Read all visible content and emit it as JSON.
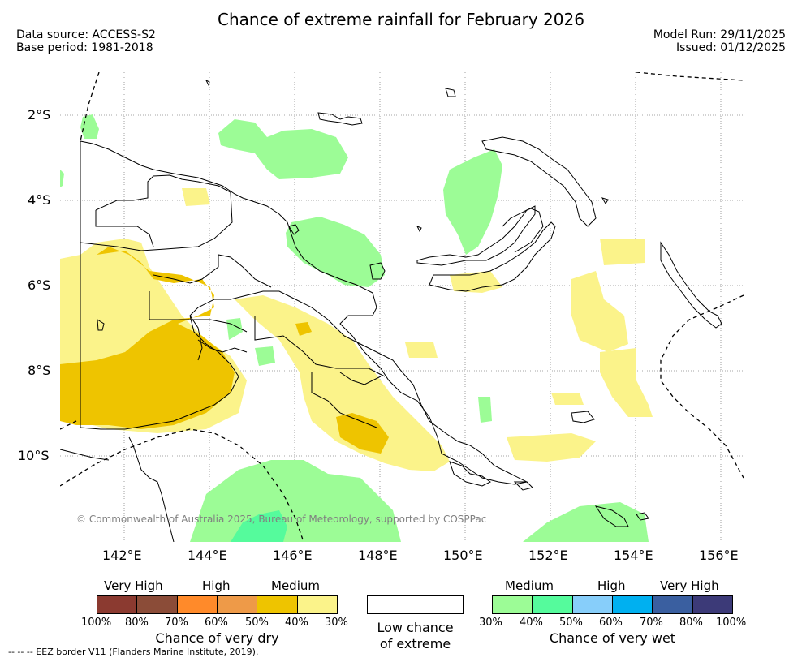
{
  "header": {
    "title": "Chance of extreme rainfall for February 2026",
    "data_source": "Data source: ACCESS-S2",
    "base_period": "Base period: 1981-2018",
    "model_run": "Model Run: 29/11/2025",
    "issued": "Issued: 01/12/2025"
  },
  "map": {
    "lat_labels": [
      "2°S",
      "4°S",
      "6°S",
      "8°S",
      "10°S"
    ],
    "lon_labels": [
      "142°E",
      "144°E",
      "146°E",
      "148°E",
      "150°E",
      "152°E",
      "154°E",
      "156°E"
    ],
    "copyright": "© Commonwealth of Australia 2025, Bureau of Meteorology, supported by COSPPac",
    "colors": {
      "dry_medium": "#eec400",
      "dry_low": "#fbf38a",
      "wet_medium": "#9cfc96",
      "wet_low": "#55fb9c"
    }
  },
  "legend": {
    "dry": {
      "categories": [
        "Very High",
        "High",
        "Medium"
      ],
      "colors": [
        "#8b3a30",
        "#8b4c38",
        "#ff8a2a",
        "#ee9a48",
        "#eec400",
        "#fbf38a"
      ],
      "ticks": [
        "100%",
        "80%",
        "70%",
        "60%",
        "50%",
        "40%",
        "30%"
      ],
      "label": "Chance of very dry"
    },
    "low": {
      "label_line1": "Low chance",
      "label_line2": "of extreme"
    },
    "wet": {
      "categories": [
        "Medium",
        "High",
        "Very High"
      ],
      "colors": [
        "#9cfc96",
        "#55fb9c",
        "#87cefa",
        "#00b0f0",
        "#3a5fa0",
        "#3c3a78"
      ],
      "ticks": [
        "30%",
        "40%",
        "50%",
        "60%",
        "70%",
        "80%",
        "100%"
      ],
      "label": "Chance of very wet"
    }
  },
  "footer": {
    "eez_note": "--  --  -- EEZ border V11 (Flanders Marine Institute, 2019)."
  }
}
